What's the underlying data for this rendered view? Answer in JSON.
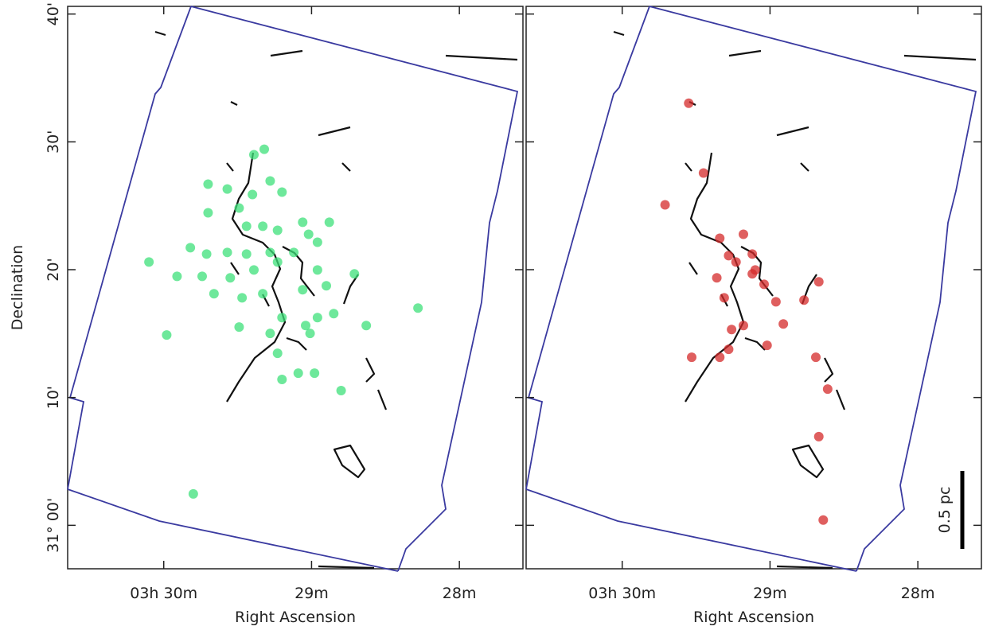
{
  "chart_data": [
    {
      "type": "scatter",
      "xlabel": "Right Ascension",
      "ylabel": "Declination",
      "xlim": [
        30.65,
        27.57
      ],
      "ylim": [
        -3.4,
        40.6
      ],
      "xticks": [
        {
          "value": 30,
          "label": "03h 30m"
        },
        {
          "value": 29,
          "label": "29m"
        },
        {
          "value": 28,
          "label": "28m"
        }
      ],
      "yticks": [
        {
          "value": 40,
          "label": "40'"
        },
        {
          "value": 30,
          "label": "30'"
        },
        {
          "value": 20,
          "label": "20'"
        },
        {
          "value": 10,
          "label": "10'"
        },
        {
          "value": 0,
          "label": "31° 00'"
        }
      ],
      "color": "#3ee07a",
      "x": [
        29.39,
        29.32,
        29.7,
        29.57,
        29.28,
        29.4,
        29.7,
        29.49,
        29.2,
        29.44,
        29.33,
        29.23,
        29.06,
        28.88,
        29.02,
        28.96,
        29.82,
        29.71,
        29.57,
        29.44,
        29.28,
        29.12,
        30.1,
        29.91,
        29.74,
        29.55,
        29.39,
        29.23,
        28.96,
        29.66,
        29.47,
        29.33,
        29.06,
        28.9,
        28.71,
        28.85,
        28.96,
        29.04,
        29.2,
        29.49,
        29.28,
        29.01,
        28.63,
        28.28,
        29.98,
        29.23,
        29.09,
        28.98,
        29.2,
        28.8,
        29.8
      ],
      "values": [
        28.99,
        29.42,
        26.69,
        26.31,
        26.94,
        25.88,
        24.45,
        24.82,
        26.07,
        23.4,
        23.4,
        23.08,
        23.71,
        23.71,
        22.77,
        22.15,
        21.72,
        21.22,
        21.35,
        21.22,
        21.35,
        21.35,
        20.6,
        19.48,
        19.48,
        19.36,
        19.98,
        20.6,
        19.98,
        18.12,
        17.8,
        18.12,
        18.43,
        18.74,
        19.67,
        16.56,
        16.25,
        15.63,
        16.25,
        15.51,
        15.01,
        15.01,
        15.63,
        17.0,
        14.89,
        13.46,
        11.9,
        11.9,
        11.41,
        10.54,
        2.46
      ]
    },
    {
      "type": "scatter",
      "xlabel": "Right Ascension",
      "xlim": [
        30.65,
        27.57
      ],
      "ylim": [
        -3.4,
        40.6
      ],
      "xticks": [
        {
          "value": 30,
          "label": "03h 30m"
        },
        {
          "value": 29,
          "label": "29m"
        },
        {
          "value": 28,
          "label": "28m"
        }
      ],
      "yticks": [
        40,
        30,
        20,
        10,
        0
      ],
      "color": "#d42a2a",
      "x": [
        29.55,
        29.45,
        29.71,
        29.34,
        29.18,
        29.28,
        29.12,
        29.23,
        29.36,
        29.12,
        29.04,
        29.31,
        28.96,
        28.77,
        28.67,
        29.18,
        29.28,
        28.91,
        29.34,
        29.02,
        29.53,
        28.69,
        28.61,
        28.67,
        28.64,
        29.1,
        29.26
      ],
      "values": [
        33.02,
        27.56,
        25.07,
        22.46,
        22.77,
        21.1,
        21.22,
        20.6,
        19.36,
        19.67,
        18.86,
        17.8,
        17.49,
        17.62,
        19.05,
        15.63,
        13.77,
        15.75,
        13.15,
        14.08,
        13.15,
        13.15,
        10.66,
        6.94,
        0.41,
        19.98,
        15.32
      ],
      "scale_bar": "0.5 pc"
    }
  ]
}
